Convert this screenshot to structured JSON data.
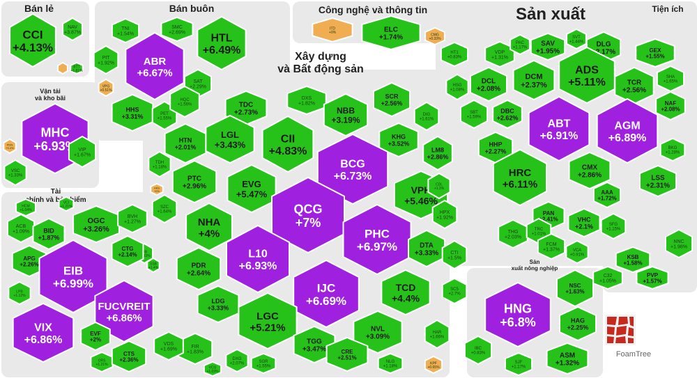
{
  "chart_data": {
    "type": "treemap",
    "title": "",
    "unit": "%",
    "colors": {
      "up": "#26c21a",
      "up_dark": "#1da515",
      "ceiling": "#a020e0",
      "ceiling_dark": "#8112b5",
      "ref": "#f0ad52",
      "border": "#ffffff",
      "sector_bg": "#e9e9e9"
    },
    "sectors": [
      {
        "name": "Bán lẻ",
        "stocks": [
          {
            "symbol": "CCI",
            "change": "+4.13%"
          },
          {
            "symbol": "NAV",
            "change": "+3.87%"
          },
          {
            "symbol": "BTT",
            "change": "+1.81%"
          },
          {
            "symbol": "",
            "change": ""
          }
        ]
      },
      {
        "name": "Bán buôn",
        "stocks": [
          {
            "symbol": "TNI",
            "change": "+1.54%"
          },
          {
            "symbol": "SMC",
            "change": "+2.69%"
          },
          {
            "symbol": "HTL",
            "change": "+6.49%"
          },
          {
            "symbol": "PIT",
            "change": "+1.92%"
          },
          {
            "symbol": "ABR",
            "change": "+6.67%"
          },
          {
            "symbol": "SAT",
            "change": "+2.29%"
          },
          {
            "symbol": "HHS",
            "change": "+3.31%"
          },
          {
            "symbol": "PET",
            "change": "+1.55%"
          },
          {
            "symbol": "VPG",
            "change": "+0.51%"
          }
        ]
      },
      {
        "name": "Công nghệ và thông tin",
        "stocks": [
          {
            "symbol": "ITD",
            "change": "+0%"
          },
          {
            "symbol": "ELC",
            "change": "+1.74%"
          },
          {
            "symbol": "CMG",
            "change": "+0.33%"
          }
        ]
      },
      {
        "name": "Sản xuất",
        "stocks": [
          {
            "symbol": "HT1",
            "change": "+0.83%"
          },
          {
            "symbol": "VDP",
            "change": "+1.31%"
          },
          {
            "symbol": "PAC",
            "change": "+1.17%"
          },
          {
            "symbol": "SAV",
            "change": "+1.95%"
          },
          {
            "symbol": "SVT",
            "change": "+1.44%"
          },
          {
            "symbol": "DLG",
            "change": "+2.17%"
          },
          {
            "symbol": "GEX",
            "change": "+1.55%"
          },
          {
            "symbol": "DCL",
            "change": "+2.08%"
          },
          {
            "symbol": "DCM",
            "change": "+2.37%"
          },
          {
            "symbol": "ADS",
            "change": "+5.11%"
          },
          {
            "symbol": "TCR",
            "change": "+2.56%"
          },
          {
            "symbol": "HSG",
            "change": "+1.08%"
          },
          {
            "symbol": "SHA",
            "change": "+1.65%"
          },
          {
            "symbol": "SBT",
            "change": "+1.59%"
          },
          {
            "symbol": "DBC",
            "change": "+2.62%"
          },
          {
            "symbol": "ABT",
            "change": "+6.91%"
          },
          {
            "symbol": "AGM",
            "change": "+6.89%"
          },
          {
            "symbol": "NAF",
            "change": "+2.08%"
          },
          {
            "symbol": "HHP",
            "change": "+2.27%"
          },
          {
            "symbol": "BKG",
            "change": "+1.28%"
          },
          {
            "symbol": "HRC",
            "change": "+6.11%"
          },
          {
            "symbol": "CMX",
            "change": "+2.86%"
          },
          {
            "symbol": "LSS",
            "change": "+2.31%"
          },
          {
            "symbol": "AAA",
            "change": "+1.72%"
          },
          {
            "symbol": "PAN",
            "change": "+2.41%"
          },
          {
            "symbol": "VHC",
            "change": "+2.1%"
          },
          {
            "symbol": "SFG",
            "change": "+1.15%"
          },
          {
            "symbol": "THG",
            "change": "+2.03%"
          },
          {
            "symbol": "TRC",
            "change": "+1.01%"
          },
          {
            "symbol": "FCM",
            "change": "+1.37%"
          },
          {
            "symbol": "VCA",
            "change": "+0.91%"
          }
        ]
      },
      {
        "name": "Tiện ích",
        "stocks": [
          {
            "symbol": "NNC",
            "change": "+1.98%"
          },
          {
            "symbol": "KSB",
            "change": "+1.58%"
          },
          {
            "symbol": "C32",
            "change": "+1.05%"
          },
          {
            "symbol": "PVP",
            "change": "+1.57%"
          }
        ]
      },
      {
        "name": "Vận tải và kho bãi",
        "stocks": [
          {
            "symbol": "MHC",
            "change": "+6.93%"
          },
          {
            "symbol": "PDN",
            "change": "+0.4%"
          },
          {
            "symbol": "VIP",
            "change": "+1.67%"
          },
          {
            "symbol": "VSC",
            "change": "+1.33%"
          }
        ]
      },
      {
        "name": "Xây dựng và Bất động sản",
        "stocks": [
          {
            "symbol": "HQC",
            "change": "+1.56%"
          },
          {
            "symbol": "TDC",
            "change": "+2.73%"
          },
          {
            "symbol": "DXS",
            "change": "+1.82%"
          },
          {
            "symbol": "SCR",
            "change": "+2.56%"
          },
          {
            "symbol": "NBB",
            "change": "+3.19%"
          },
          {
            "symbol": "DIG",
            "change": "+1.61%"
          },
          {
            "symbol": "HTN",
            "change": "+2.01%"
          },
          {
            "symbol": "LGL",
            "change": "+3.43%"
          },
          {
            "symbol": "CII",
            "change": "+4.83%"
          },
          {
            "symbol": "KHG",
            "change": "+3.52%"
          },
          {
            "symbol": "LM8",
            "change": "+2.86%"
          },
          {
            "symbol": "TDH",
            "change": "+1.18%"
          },
          {
            "symbol": "BCG",
            "change": "+6.73%"
          },
          {
            "symbol": "PTC",
            "change": "+2.96%"
          },
          {
            "symbol": "EVG",
            "change": "+5.47%"
          },
          {
            "symbol": "VPH",
            "change": "+5.46%"
          },
          {
            "symbol": "CDL",
            "change": "+1.3%"
          },
          {
            "symbol": "HAS",
            "change": "+0%"
          },
          {
            "symbol": "QCG",
            "change": "+7%"
          },
          {
            "symbol": "SZC",
            "change": "+1.64%"
          },
          {
            "symbol": "NHA",
            "change": "+4%"
          },
          {
            "symbol": "PHC",
            "change": "+6.97%"
          },
          {
            "symbol": "HPX",
            "change": "+1.92%"
          },
          {
            "symbol": "L10",
            "change": "+6.93%"
          },
          {
            "symbol": "DTA",
            "change": "+3.33%"
          },
          {
            "symbol": "CTI",
            "change": "+1.5%"
          },
          {
            "symbol": "PDR",
            "change": "+2.64%"
          },
          {
            "symbol": "IJC",
            "change": "+6.69%"
          },
          {
            "symbol": "TCD",
            "change": "+4.4%"
          },
          {
            "symbol": "LDG",
            "change": "+3.33%"
          },
          {
            "symbol": "SC5",
            "change": "+2.7%"
          },
          {
            "symbol": "LGC",
            "change": "+5.21%"
          },
          {
            "symbol": "NVL",
            "change": "+3.09%"
          },
          {
            "symbol": "FIR",
            "change": "+1.83%"
          },
          {
            "symbol": "HAR",
            "change": "+1.66%"
          },
          {
            "symbol": "TGG",
            "change": "+3.47%"
          },
          {
            "symbol": "CRE",
            "change": "+2.51%"
          },
          {
            "symbol": "DXG",
            "change": "+2.07%"
          },
          {
            "symbol": "SGR",
            "change": "+1.55%"
          },
          {
            "symbol": "NLG",
            "change": "+1.18%"
          },
          {
            "symbol": "KPF",
            "change": "+0.65%"
          },
          {
            "symbol": "VCG",
            "change": "+1.03%"
          }
        ]
      },
      {
        "name": "Tài chính và bảo hiểm",
        "stocks": [
          {
            "symbol": "HCM",
            "change": "+1.04%"
          },
          {
            "symbol": "VCI",
            "change": "+1.21%"
          },
          {
            "symbol": "ACB",
            "change": "+1.09%"
          },
          {
            "symbol": "BID",
            "change": "+1.87%"
          },
          {
            "symbol": "OGC",
            "change": "+3.26%"
          },
          {
            "symbol": "BVH",
            "change": "+1.27%"
          },
          {
            "symbol": "VIB",
            "change": "+0.83%"
          },
          {
            "symbol": "APG",
            "change": "+2.26%"
          },
          {
            "symbol": "CTG",
            "change": "+2.14%"
          },
          {
            "symbol": "SSB",
            "change": "+1.4%"
          },
          {
            "symbol": "EIB",
            "change": "+6.99%"
          },
          {
            "symbol": "LPB",
            "change": "+1.12%"
          },
          {
            "symbol": "FUCVREIT",
            "change": "+6.86%"
          },
          {
            "symbol": "VIX",
            "change": "+6.86%"
          },
          {
            "symbol": "EVF",
            "change": "+2%"
          },
          {
            "symbol": "VDS",
            "change": "+1.69%"
          },
          {
            "symbol": "ORS",
            "change": "+1.21%"
          },
          {
            "symbol": "CTS",
            "change": "+2.36%"
          }
        ]
      },
      {
        "name": "Sản xuất nông nghiệp",
        "stocks": [
          {
            "symbol": "HNG",
            "change": "+6.8%"
          },
          {
            "symbol": "NSC",
            "change": "+1.63%"
          },
          {
            "symbol": "HAG",
            "change": "+2.25%"
          },
          {
            "symbol": "ASM",
            "change": "+1.32%"
          },
          {
            "symbol": "IBC",
            "change": "+0.83%"
          },
          {
            "symbol": "SJF",
            "change": "+1.17%"
          }
        ]
      }
    ]
  },
  "logo": {
    "text": "FoamTree"
  }
}
